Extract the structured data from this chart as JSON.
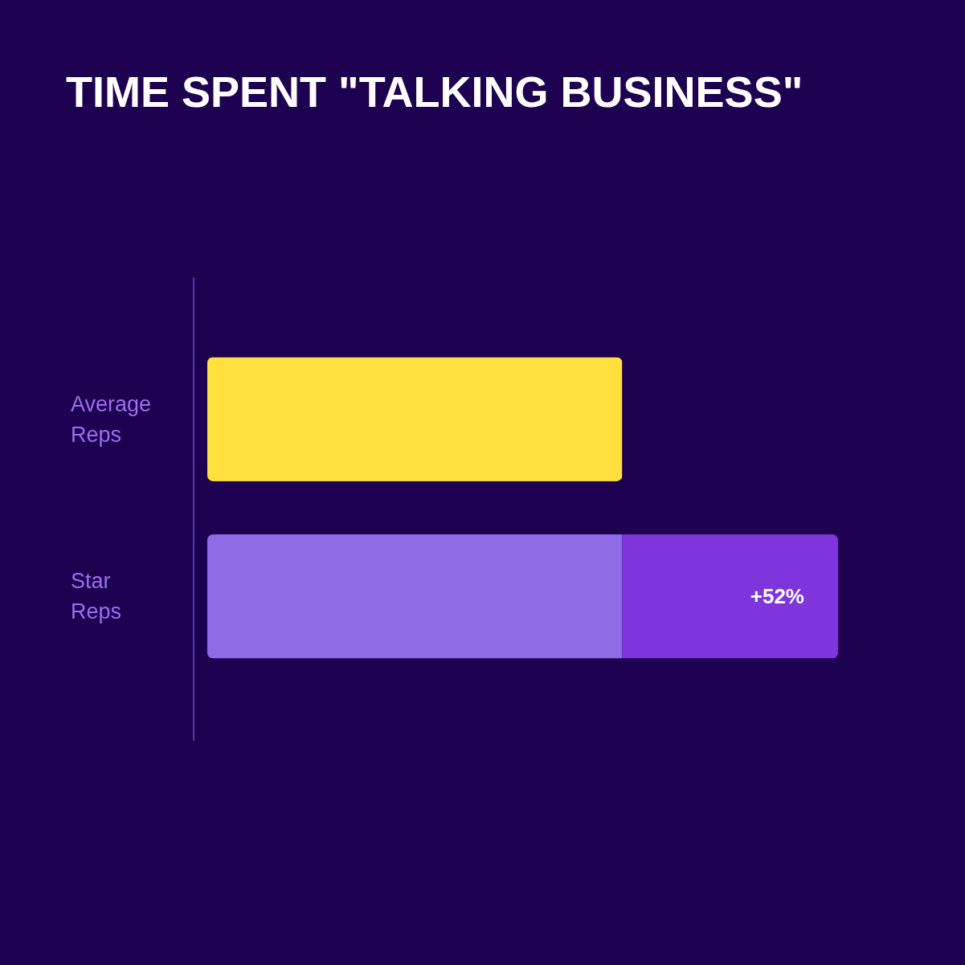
{
  "chart_data": {
    "type": "bar",
    "orientation": "horizontal",
    "stacked": true,
    "title": "TIME SPENT \"TALKING BUSINESS\"",
    "categories": [
      "Average Reps",
      "Star Reps"
    ],
    "series": [
      {
        "colors": [
          "#ffe03f",
          "#906be6"
        ],
        "values": [
          100,
          100
        ]
      },
      {
        "color": "#7f35dc",
        "values": [
          null,
          52
        ],
        "value_labels": [
          null,
          "+52%"
        ]
      }
    ]
  }
}
